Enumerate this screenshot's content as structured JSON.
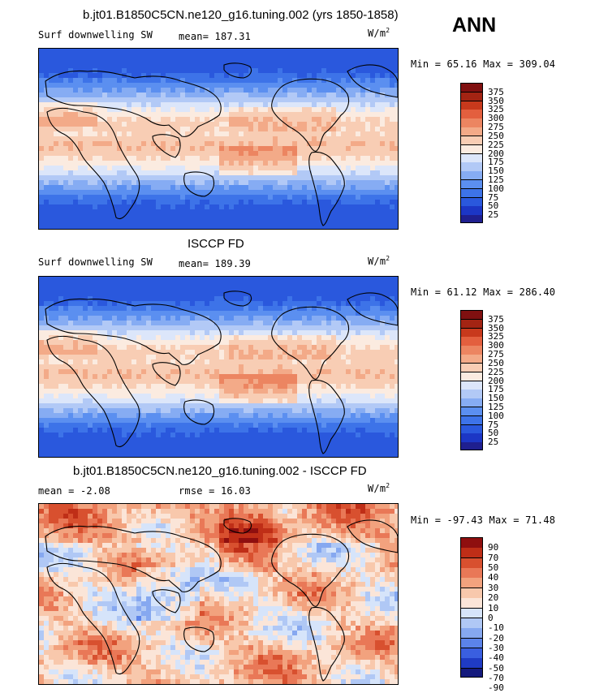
{
  "season": "ANN",
  "units_main": "W/m",
  "units_exp": "2",
  "palette_colors": {
    "full": [
      "#1f1f8f",
      "#1c36c5",
      "#2a58dd",
      "#3d73e8",
      "#5b8ff0",
      "#86acf3",
      "#b2c9f6",
      "#dce6fa",
      "#fbebe0",
      "#f8cdb4",
      "#f3aa88",
      "#ec8561",
      "#e35f3e",
      "#c8391c",
      "#a32413",
      "#801010"
    ],
    "diff": [
      "#141a7d",
      "#1f3bc4",
      "#3a5fe0",
      "#5b83ea",
      "#86a8f0",
      "#b0c8f5",
      "#d6e4fa",
      "#fbe5d8",
      "#f8c8ac",
      "#f2a27e",
      "#e97857",
      "#d8502f",
      "#bf2e17",
      "#8f0f0f"
    ]
  },
  "chart_data": [
    {
      "type": "heatmap",
      "title": "b.jt01.B1850C5CN.ne120_g16.tuning.002 (yrs 1850-1858)",
      "field": "Surf downwelling SW",
      "mean_text": "mean= 187.31",
      "minmax_text": "Min =  65.16 Max = 309.04",
      "min": 65.16,
      "max": 309.04,
      "mean": 187.31,
      "colorbar_levels": [
        "375",
        "350",
        "325",
        "300",
        "275",
        "250",
        "225",
        "200",
        "175",
        "150",
        "125",
        "100",
        "75",
        "50",
        "25"
      ],
      "palette": "full"
    },
    {
      "type": "heatmap",
      "title": "ISCCP FD",
      "field": "Surf downwelling SW",
      "mean_text": "mean= 189.39",
      "minmax_text": "Min =  61.12 Max = 286.40",
      "min": 61.12,
      "max": 286.4,
      "mean": 189.39,
      "colorbar_levels": [
        "375",
        "350",
        "325",
        "300",
        "275",
        "250",
        "225",
        "200",
        "175",
        "150",
        "125",
        "100",
        "75",
        "50",
        "25"
      ],
      "palette": "full"
    },
    {
      "type": "heatmap",
      "title": "b.jt01.B1850C5CN.ne120_g16.tuning.002 - ISCCP FD",
      "field": "",
      "mean_text": "mean =  -2.08",
      "rmse_text": "rmse =  16.03",
      "minmax_text": "Min = -97.43 Max =  71.48",
      "min": -97.43,
      "max": 71.48,
      "mean": -2.08,
      "rmse": 16.03,
      "colorbar_levels": [
        "90",
        "70",
        "50",
        "40",
        "30",
        "20",
        "10",
        "0",
        "-10",
        "-20",
        "-30",
        "-40",
        "-50",
        "-70",
        "-90"
      ],
      "palette": "diff"
    }
  ]
}
